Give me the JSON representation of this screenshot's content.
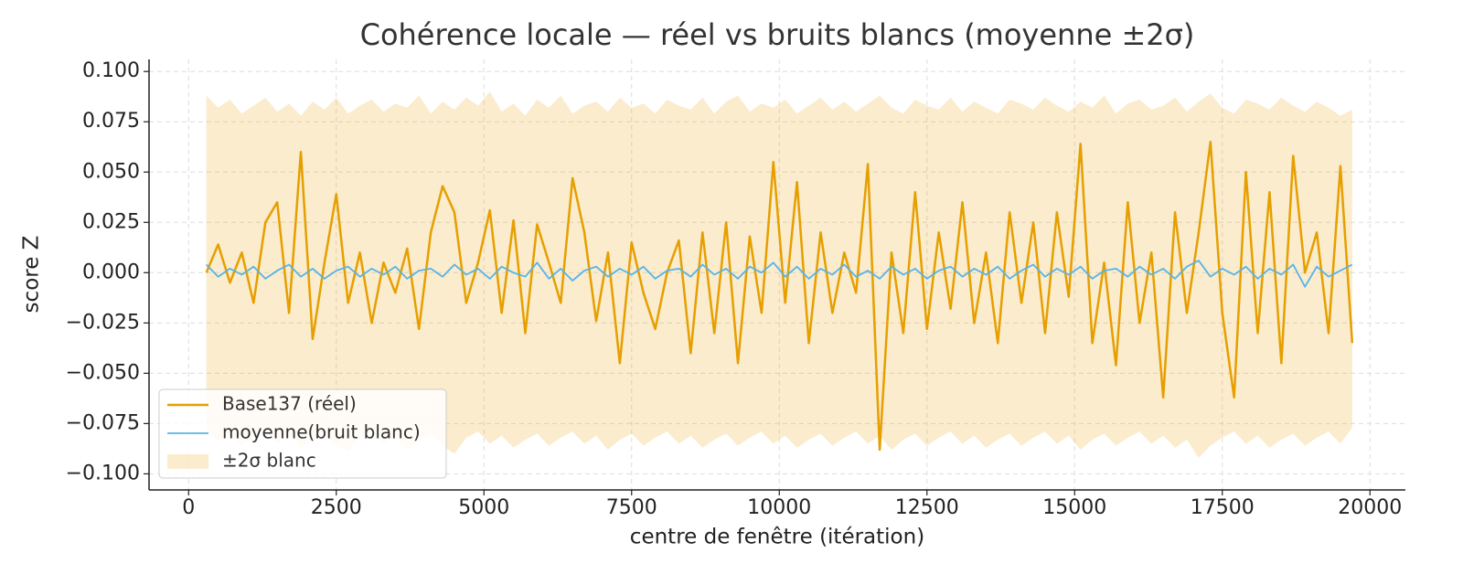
{
  "chart_data": {
    "type": "line",
    "title": "Cohérence locale — réel vs bruits blancs (moyenne ±2σ)",
    "xlabel": "centre de fenêtre (itération)",
    "ylabel": "score Z",
    "xlim": [
      -670,
      20600
    ],
    "ylim": [
      -0.108,
      0.106
    ],
    "xticks": [
      0,
      2500,
      5000,
      7500,
      10000,
      12500,
      15000,
      17500,
      20000
    ],
    "yticks": [
      {
        "value": 0.1,
        "label": "0.100"
      },
      {
        "value": 0.075,
        "label": "0.075"
      },
      {
        "value": 0.05,
        "label": "0.050"
      },
      {
        "value": 0.025,
        "label": "0.025"
      },
      {
        "value": 0,
        "label": "0.000"
      },
      {
        "value": -0.025,
        "label": "−0.025"
      },
      {
        "value": -0.05,
        "label": "−0.050"
      },
      {
        "value": -0.075,
        "label": "−0.075"
      },
      {
        "value": -0.1,
        "label": "−0.100"
      }
    ],
    "grid": true,
    "legend": "lower left",
    "x": [
      300,
      500,
      700,
      900,
      1100,
      1300,
      1500,
      1700,
      1900,
      2100,
      2300,
      2500,
      2700,
      2900,
      3100,
      3300,
      3500,
      3700,
      3900,
      4100,
      4300,
      4500,
      4700,
      4900,
      5100,
      5300,
      5500,
      5700,
      5900,
      6100,
      6300,
      6500,
      6700,
      6900,
      7100,
      7300,
      7500,
      7700,
      7900,
      8100,
      8300,
      8500,
      8700,
      8900,
      9100,
      9300,
      9500,
      9700,
      9900,
      10100,
      10300,
      10500,
      10700,
      10900,
      11100,
      11300,
      11500,
      11700,
      11900,
      12100,
      12300,
      12500,
      12700,
      12900,
      13100,
      13300,
      13500,
      13700,
      13900,
      14100,
      14300,
      14500,
      14700,
      14900,
      15100,
      15300,
      15500,
      15700,
      15900,
      16100,
      16300,
      16500,
      16700,
      16900,
      17100,
      17300,
      17500,
      17700,
      17900,
      18100,
      18300,
      18500,
      18700,
      18900,
      19100,
      19300,
      19500,
      19700
    ],
    "series": [
      {
        "name": "±2σ blanc",
        "color": "#e69f00",
        "kind": "band",
        "upper": [
          0.088,
          0.082,
          0.086,
          0.079,
          0.083,
          0.087,
          0.08,
          0.084,
          0.078,
          0.085,
          0.081,
          0.087,
          0.079,
          0.083,
          0.086,
          0.08,
          0.084,
          0.082,
          0.088,
          0.079,
          0.085,
          0.081,
          0.087,
          0.083,
          0.09,
          0.08,
          0.084,
          0.078,
          0.086,
          0.082,
          0.088,
          0.079,
          0.083,
          0.085,
          0.08,
          0.087,
          0.082,
          0.084,
          0.079,
          0.086,
          0.083,
          0.081,
          0.087,
          0.079,
          0.085,
          0.088,
          0.08,
          0.084,
          0.082,
          0.086,
          0.079,
          0.083,
          0.087,
          0.081,
          0.085,
          0.08,
          0.084,
          0.088,
          0.082,
          0.079,
          0.086,
          0.083,
          0.081,
          0.087,
          0.08,
          0.085,
          0.082,
          0.079,
          0.086,
          0.084,
          0.081,
          0.087,
          0.083,
          0.08,
          0.085,
          0.082,
          0.088,
          0.079,
          0.084,
          0.086,
          0.081,
          0.083,
          0.087,
          0.08,
          0.085,
          0.089,
          0.082,
          0.079,
          0.086,
          0.084,
          0.081,
          0.087,
          0.083,
          0.08,
          0.085,
          0.082,
          0.078,
          0.081
        ],
        "lower": [
          -0.078,
          -0.084,
          -0.08,
          -0.086,
          -0.082,
          -0.079,
          -0.085,
          -0.081,
          -0.087,
          -0.083,
          -0.08,
          -0.086,
          -0.089,
          -0.082,
          -0.079,
          -0.085,
          -0.081,
          -0.088,
          -0.083,
          -0.08,
          -0.086,
          -0.09,
          -0.082,
          -0.079,
          -0.085,
          -0.081,
          -0.087,
          -0.083,
          -0.08,
          -0.086,
          -0.082,
          -0.079,
          -0.085,
          -0.081,
          -0.088,
          -0.083,
          -0.08,
          -0.086,
          -0.082,
          -0.079,
          -0.085,
          -0.081,
          -0.087,
          -0.083,
          -0.08,
          -0.086,
          -0.082,
          -0.079,
          -0.085,
          -0.081,
          -0.087,
          -0.083,
          -0.08,
          -0.086,
          -0.082,
          -0.079,
          -0.085,
          -0.081,
          -0.088,
          -0.083,
          -0.08,
          -0.086,
          -0.082,
          -0.079,
          -0.085,
          -0.081,
          -0.087,
          -0.083,
          -0.08,
          -0.086,
          -0.082,
          -0.079,
          -0.085,
          -0.081,
          -0.088,
          -0.083,
          -0.08,
          -0.086,
          -0.082,
          -0.079,
          -0.085,
          -0.081,
          -0.087,
          -0.083,
          -0.092,
          -0.086,
          -0.082,
          -0.079,
          -0.085,
          -0.081,
          -0.087,
          -0.083,
          -0.08,
          -0.086,
          -0.082,
          -0.079,
          -0.085,
          -0.077
        ]
      },
      {
        "name": "Base137 (réel)",
        "color": "#e69f00",
        "kind": "line",
        "values": [
          0.0,
          0.014,
          -0.005,
          0.01,
          -0.015,
          0.025,
          0.035,
          -0.02,
          0.06,
          -0.033,
          0.005,
          0.039,
          -0.015,
          0.01,
          -0.025,
          0.005,
          -0.01,
          0.012,
          -0.028,
          0.02,
          0.043,
          0.03,
          -0.015,
          0.005,
          0.031,
          -0.02,
          0.026,
          -0.03,
          0.024,
          0.005,
          -0.015,
          0.047,
          0.02,
          -0.024,
          0.01,
          -0.045,
          0.015,
          -0.01,
          -0.028,
          0.0,
          0.016,
          -0.04,
          0.02,
          -0.03,
          0.025,
          -0.045,
          0.018,
          -0.02,
          0.055,
          -0.015,
          0.045,
          -0.035,
          0.02,
          -0.02,
          0.01,
          -0.01,
          0.054,
          -0.088,
          0.01,
          -0.03,
          0.04,
          -0.028,
          0.02,
          -0.018,
          0.035,
          -0.025,
          0.01,
          -0.035,
          0.03,
          -0.015,
          0.025,
          -0.03,
          0.03,
          -0.012,
          0.064,
          -0.035,
          0.005,
          -0.046,
          0.035,
          -0.025,
          0.01,
          -0.062,
          0.03,
          -0.02,
          0.02,
          0.065,
          -0.02,
          -0.062,
          0.05,
          -0.03,
          0.04,
          -0.045,
          0.058,
          0.0,
          0.02,
          -0.03,
          0.053,
          -0.035
        ]
      },
      {
        "name": "moyenne(bruit blanc)",
        "color": "#56b4e9",
        "kind": "line",
        "values": [
          0.004,
          -0.002,
          0.002,
          -0.001,
          0.003,
          -0.003,
          0.001,
          0.004,
          -0.002,
          0.002,
          -0.003,
          0.001,
          0.003,
          -0.002,
          0.002,
          -0.001,
          0.003,
          -0.003,
          0.001,
          0.002,
          -0.002,
          0.004,
          -0.001,
          0.002,
          -0.003,
          0.003,
          0.0,
          -0.002,
          0.005,
          -0.003,
          0.002,
          -0.004,
          0.001,
          0.003,
          -0.002,
          0.002,
          -0.001,
          0.003,
          -0.003,
          0.001,
          0.002,
          -0.002,
          0.004,
          -0.001,
          0.002,
          -0.003,
          0.003,
          0.0,
          0.005,
          -0.002,
          0.003,
          -0.003,
          0.002,
          -0.001,
          0.004,
          -0.002,
          0.001,
          -0.003,
          0.003,
          -0.001,
          0.002,
          -0.003,
          0.001,
          0.003,
          -0.002,
          0.002,
          -0.001,
          0.003,
          -0.003,
          0.001,
          0.004,
          -0.002,
          0.002,
          -0.001,
          0.003,
          -0.003,
          0.001,
          0.002,
          -0.002,
          0.003,
          -0.001,
          0.002,
          -0.003,
          0.003,
          0.006,
          -0.002,
          0.002,
          -0.001,
          0.003,
          -0.003,
          0.002,
          -0.001,
          0.004,
          -0.007,
          0.003,
          -0.002,
          0.001,
          0.004
        ]
      }
    ]
  }
}
